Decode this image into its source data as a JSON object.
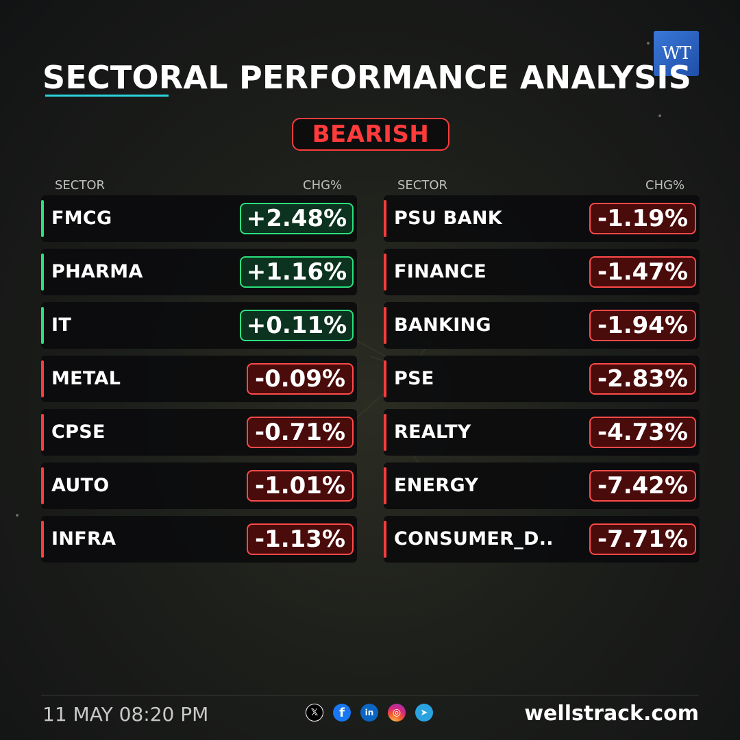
{
  "header": {
    "title": "SECTORAL PERFORMANCE ANALYSIS",
    "logo_text": "WT",
    "sentiment": "BEARISH"
  },
  "columns": {
    "sector": "SECTOR",
    "chg": "CHG%"
  },
  "left": [
    {
      "name": "FMCG",
      "chg": "+2.48%",
      "dir": "pos"
    },
    {
      "name": "PHARMA",
      "chg": "+1.16%",
      "dir": "pos"
    },
    {
      "name": "IT",
      "chg": "+0.11%",
      "dir": "pos"
    },
    {
      "name": "METAL",
      "chg": "-0.09%",
      "dir": "neg"
    },
    {
      "name": "CPSE",
      "chg": "-0.71%",
      "dir": "neg"
    },
    {
      "name": "AUTO",
      "chg": "-1.01%",
      "dir": "neg"
    },
    {
      "name": "INFRA",
      "chg": "-1.13%",
      "dir": "neg"
    }
  ],
  "right": [
    {
      "name": "PSU BANK",
      "chg": "-1.19%",
      "dir": "neg"
    },
    {
      "name": "FINANCE",
      "chg": "-1.47%",
      "dir": "neg"
    },
    {
      "name": "BANKING",
      "chg": "-1.94%",
      "dir": "neg"
    },
    {
      "name": "PSE",
      "chg": "-2.83%",
      "dir": "neg"
    },
    {
      "name": "REALTY",
      "chg": "-4.73%",
      "dir": "neg"
    },
    {
      "name": "ENERGY",
      "chg": "-7.42%",
      "dir": "neg"
    },
    {
      "name": "CONSUMER_D..",
      "chg": "-7.71%",
      "dir": "neg"
    }
  ],
  "footer": {
    "datetime": "11 MAY 08:20 PM",
    "website": "wellstrack.com",
    "social_icons": [
      "x-icon",
      "facebook-icon",
      "linkedin-icon",
      "instagram-icon",
      "telegram-icon"
    ]
  },
  "colors": {
    "positive": "#2be07d",
    "negative": "#ff3b3b",
    "accent_underline": "#2bd3dd",
    "logo_blue": "#2a62c4"
  }
}
